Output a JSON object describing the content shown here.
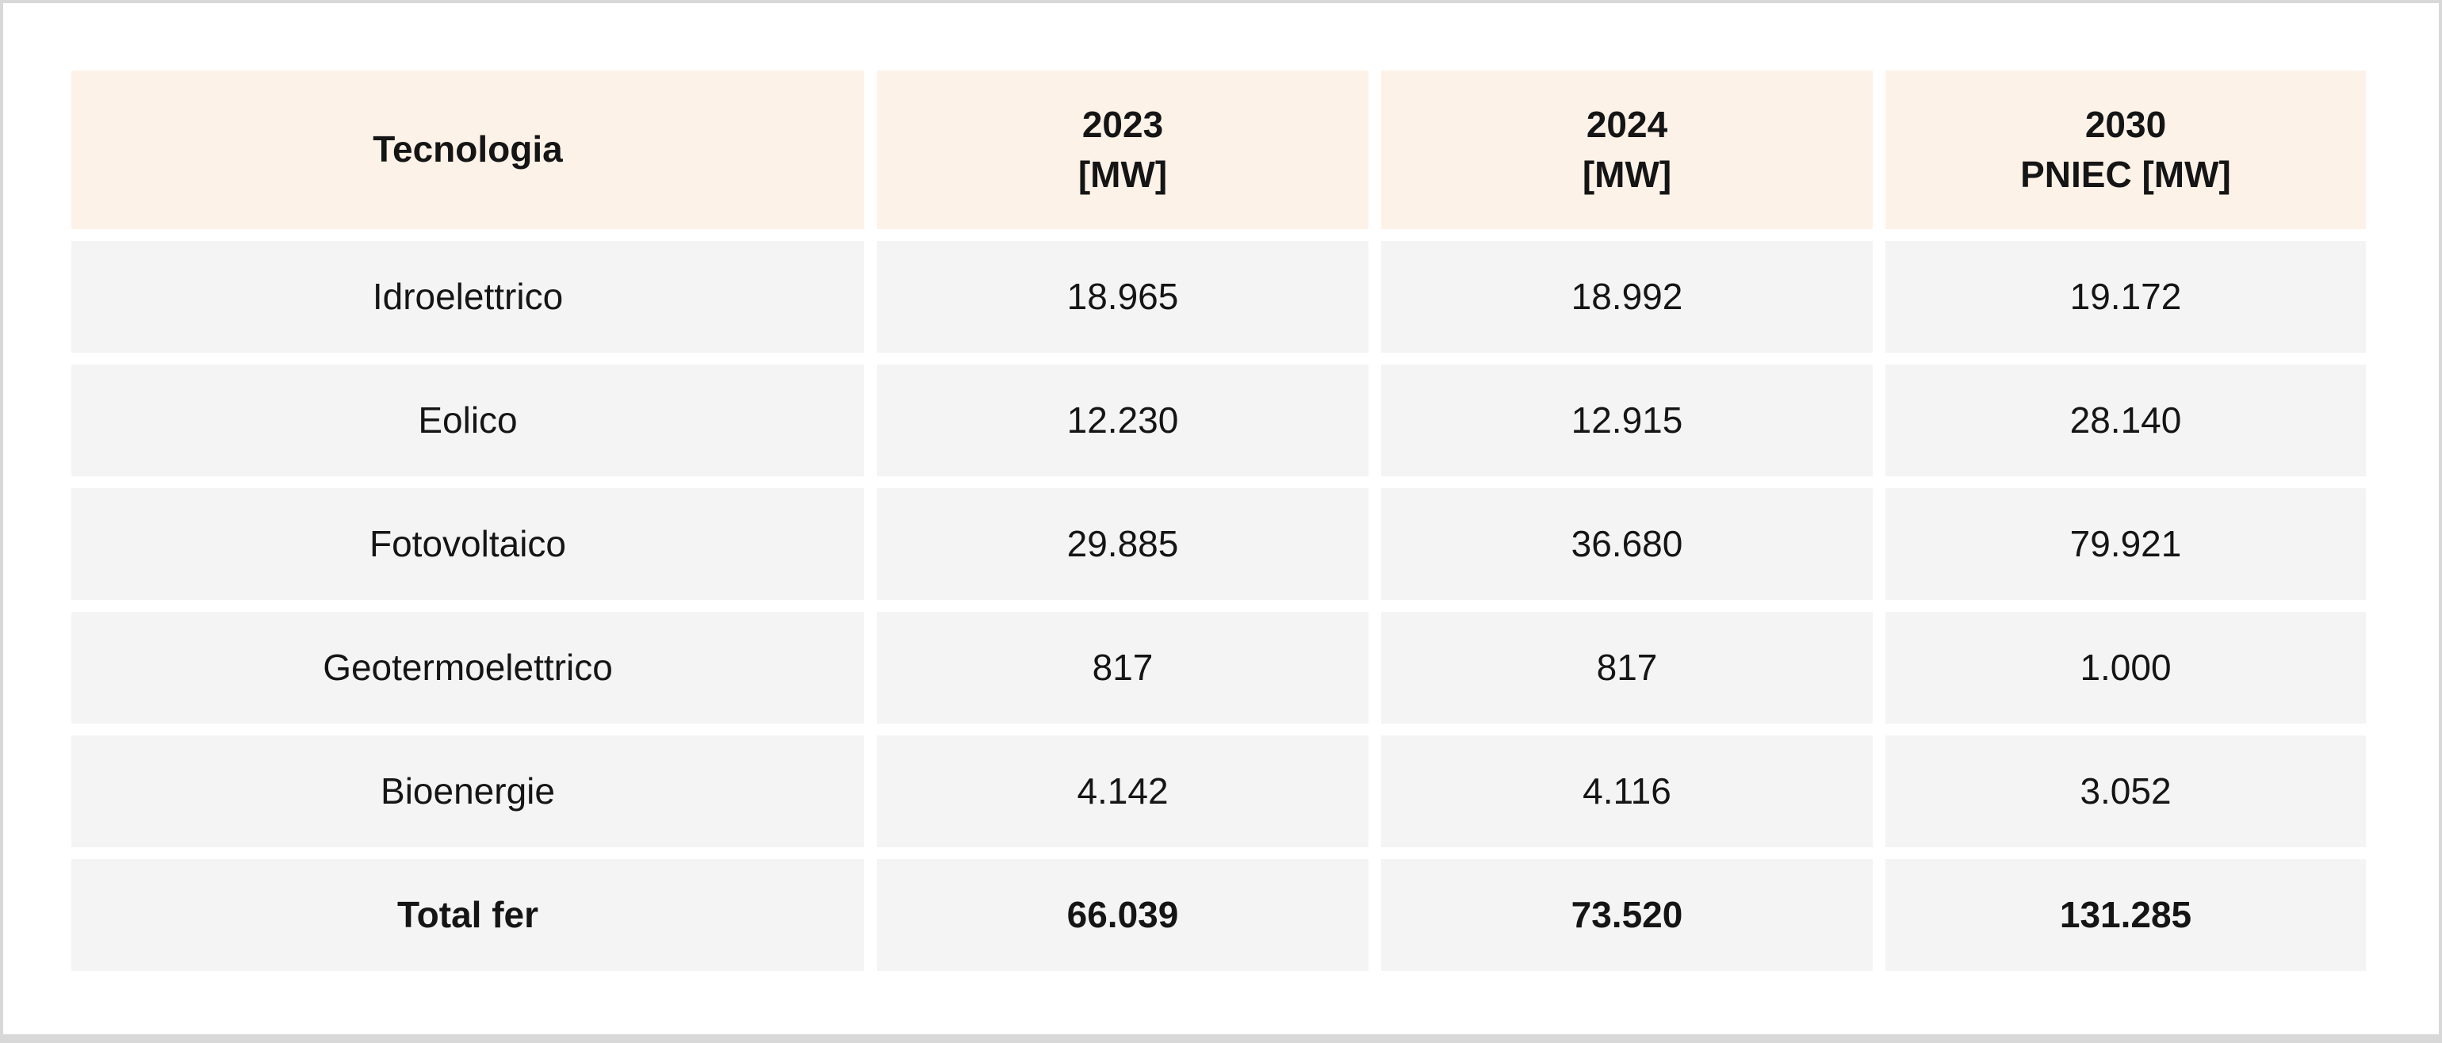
{
  "table": {
    "headers": [
      {
        "line1": "Tecnologia",
        "line2": ""
      },
      {
        "line1": "2023",
        "line2": "[MW]"
      },
      {
        "line1": "2024",
        "line2": "[MW]"
      },
      {
        "line1": "2030",
        "line2": "PNIEC [MW]"
      }
    ],
    "rows": [
      {
        "label": "Idroelettrico",
        "v2023": "18.965",
        "v2024": "18.992",
        "v2030": "19.172"
      },
      {
        "label": "Eolico",
        "v2023": "12.230",
        "v2024": "12.915",
        "v2030": "28.140"
      },
      {
        "label": "Fotovoltaico",
        "v2023": "29.885",
        "v2024": "36.680",
        "v2030": "79.921"
      },
      {
        "label": "Geotermoelettrico",
        "v2023": "817",
        "v2024": "817",
        "v2030": "1.000"
      },
      {
        "label": "Bioenergie",
        "v2023": "4.142",
        "v2024": "4.116",
        "v2030": "3.052"
      }
    ],
    "total_row": {
      "label": "Total fer",
      "v2023": "66.039",
      "v2024": "73.520",
      "v2030": "131.285"
    }
  },
  "colors": {
    "header_bg": "#fdf2e8",
    "row_bg": "#f4f4f4",
    "frame_border": "#d8d8d8",
    "text": "#151515"
  },
  "chart_data": {
    "type": "table",
    "title": "",
    "columns": [
      "Tecnologia",
      "2023 [MW]",
      "2024 [MW]",
      "2030 PNIEC [MW]"
    ],
    "categories": [
      "Idroelettrico",
      "Eolico",
      "Fotovoltaico",
      "Geotermoelettrico",
      "Bioenergie",
      "Total fer"
    ],
    "series": [
      {
        "name": "2023 [MW]",
        "values": [
          18965,
          12230,
          29885,
          817,
          4142,
          66039
        ]
      },
      {
        "name": "2024 [MW]",
        "values": [
          18992,
          12915,
          36680,
          817,
          4116,
          73520
        ]
      },
      {
        "name": "2030 PNIEC [MW]",
        "values": [
          19172,
          28140,
          79921,
          1000,
          3052,
          131285
        ]
      }
    ],
    "unit": "MW"
  }
}
